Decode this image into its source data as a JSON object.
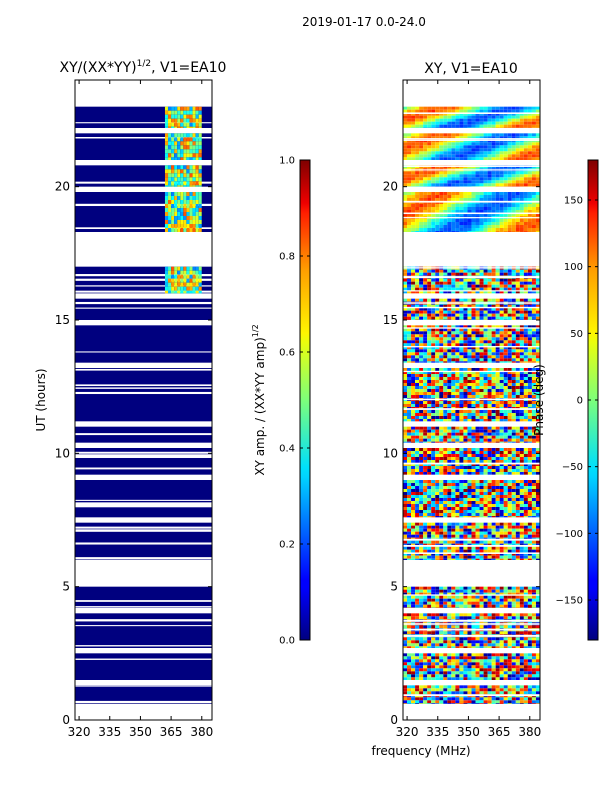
{
  "figure_title": "2019-01-17 0.0-24.0",
  "colors": {
    "navy": "#00007f",
    "white": "#ffffff",
    "frame": "#000000"
  },
  "chart_data": [
    {
      "type": "heatmap",
      "title_prefix": "XY/(XX*YY)",
      "title_exponent": "1/2",
      "title_suffix": ", V1=EA10",
      "xlabel": "",
      "ylabel": "UT (hours)",
      "xlim": [
        318,
        385
      ],
      "ylim": [
        0,
        24
      ],
      "xticks": [
        320,
        335,
        350,
        365,
        380
      ],
      "yticks": [
        0,
        5,
        10,
        15,
        20
      ],
      "colorscale": "jet",
      "colorbar": {
        "label_prefix": "XY amp. / (XX*YY amp)",
        "label_exponent": "1/2",
        "range": [
          0.0,
          1.0
        ],
        "ticks": [
          "0.0",
          "0.2",
          "0.4",
          "0.6",
          "0.8",
          "1.0"
        ]
      },
      "data_time_ranges_hours": [
        [
          0.6,
          1.3
        ],
        [
          1.5,
          2.5
        ],
        [
          2.7,
          4.0
        ],
        [
          4.2,
          5.0
        ],
        [
          6.0,
          7.4
        ],
        [
          7.6,
          9.0
        ],
        [
          9.2,
          10.2
        ],
        [
          10.4,
          11.0
        ],
        [
          11.2,
          13.2
        ],
        [
          13.4,
          14.8
        ],
        [
          15.0,
          15.8
        ],
        [
          16.0,
          17.0
        ],
        [
          18.3,
          19.8
        ],
        [
          20.0,
          20.8
        ],
        [
          21.0,
          22.0
        ],
        [
          22.2,
          23.0
        ]
      ],
      "high_value_band_mhz": [
        362,
        380
      ],
      "high_value_band_hours": [
        16.0,
        23.0
      ]
    },
    {
      "type": "heatmap",
      "title": "XY, V1=EA10",
      "xlabel": "frequency (MHz)",
      "ylabel": "",
      "xlim": [
        318,
        385
      ],
      "ylim": [
        0,
        24
      ],
      "xticks": [
        320,
        335,
        350,
        365,
        380
      ],
      "yticks": [
        0,
        5,
        10,
        15,
        20
      ],
      "colorscale": "jet",
      "colorbar": {
        "label": "Phase (deg)",
        "range": [
          -180,
          180
        ],
        "ticks": [
          "150",
          "100",
          "50",
          "0",
          "−50",
          "−100",
          "−150"
        ],
        "tick_values": [
          150,
          100,
          50,
          0,
          -50,
          -100,
          -150
        ]
      },
      "data_time_ranges_hours": [
        [
          0.6,
          1.3
        ],
        [
          1.5,
          2.5
        ],
        [
          2.7,
          4.0
        ],
        [
          4.2,
          5.0
        ],
        [
          6.0,
          7.4
        ],
        [
          7.6,
          9.0
        ],
        [
          9.2,
          10.2
        ],
        [
          10.4,
          11.0
        ],
        [
          11.2,
          13.2
        ],
        [
          13.4,
          14.8
        ],
        [
          15.0,
          15.8
        ],
        [
          16.0,
          17.0
        ],
        [
          18.3,
          19.8
        ],
        [
          20.0,
          20.8
        ],
        [
          21.0,
          22.0
        ],
        [
          22.2,
          23.0
        ]
      ],
      "smooth_phase_hours": [
        18.3,
        23.0
      ]
    }
  ]
}
